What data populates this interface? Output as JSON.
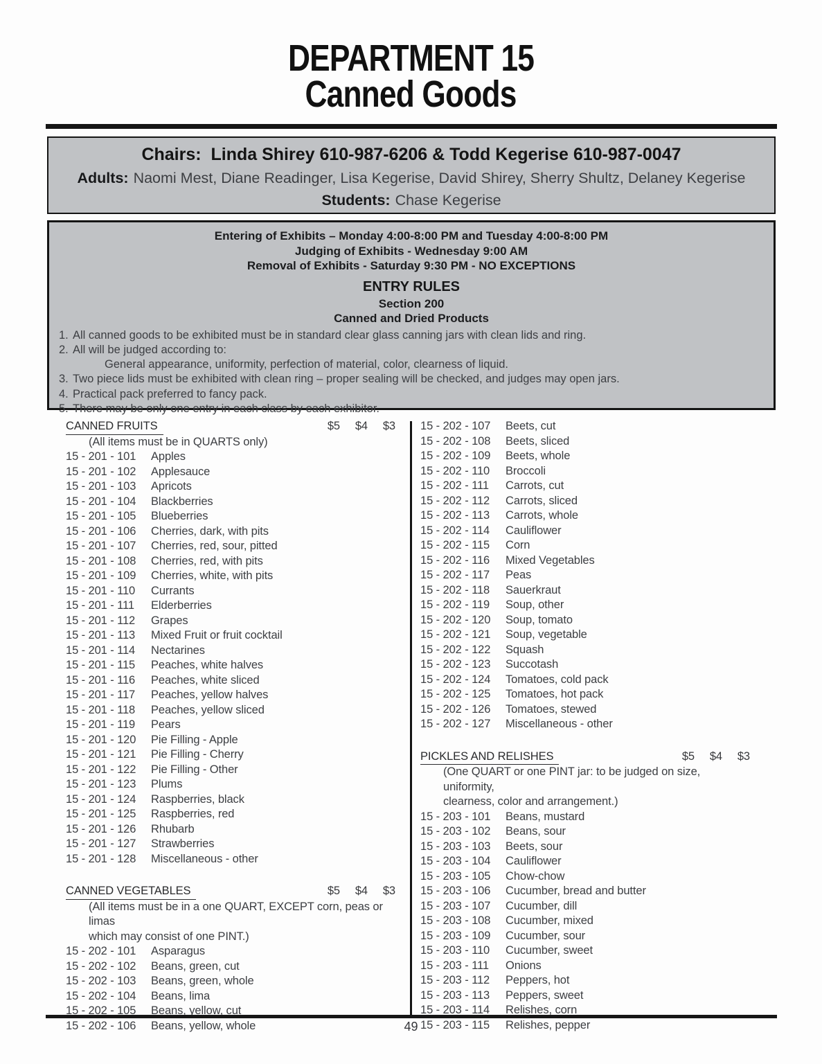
{
  "header": {
    "title_line1": "DEPARTMENT 15",
    "title_line2": "Canned Goods"
  },
  "chairs_box": {
    "chairs_line": "Chairs:  Linda Shirey 610-987-6206 & Todd Kegerise 610-987-0047",
    "adults_label": "Adults:",
    "adults_names": "Naomi Mest, Diane Readinger, Lisa Kegerise, David Shirey, Sherry Shultz, Delaney Kegerise",
    "students_label": "Students:",
    "students_names": "Chase Kegerise"
  },
  "rules_box": {
    "schedule_lines": [
      "Entering of Exhibits – Monday 4:00-8:00 PM and Tuesday 4:00-8:00 PM",
      "Judging of Exhibits - Wednesday 9:00 AM",
      "Removal of Exhibits - Saturday 9:30 PM - NO EXCEPTIONS"
    ],
    "entry_rules_title": "ENTRY RULES",
    "section_line": "Section 200",
    "category_line": "Canned and Dried Products",
    "rules": [
      {
        "num": "1.",
        "text": "All canned goods to be exhibited must be in standard clear glass canning jars with clean lids and ring.",
        "indent": false
      },
      {
        "num": "2.",
        "text": "All will be judged according to:",
        "indent": false
      },
      {
        "num": "",
        "text": "General appearance, uniformity, perfection of material, color, clearness of liquid.",
        "indent": true
      },
      {
        "num": "3.",
        "text": "Two piece lids must be exhibited with clean ring – proper sealing will be checked, and judges may open jars.",
        "indent": false
      },
      {
        "num": "4.",
        "text": "Practical pack preferred to fancy pack.",
        "indent": false
      },
      {
        "num": "5.",
        "text": "There may be only one entry in each class by each exhibitor.",
        "indent": false
      }
    ]
  },
  "list": {
    "columns": [
      {
        "blocks": [
          {
            "type": "section",
            "title": "CANNED FRUITS",
            "prices": [
              "$5",
              "$4",
              "$3"
            ]
          },
          {
            "type": "note",
            "text": "(All items must be in QUARTS only)"
          },
          {
            "type": "item",
            "code": "15 - 201 - 101",
            "desc": "Apples"
          },
          {
            "type": "item",
            "code": "15 - 201 - 102",
            "desc": "Applesauce"
          },
          {
            "type": "item",
            "code": "15 - 201 - 103",
            "desc": "Apricots"
          },
          {
            "type": "item",
            "code": "15 - 201 - 104",
            "desc": "Blackberries"
          },
          {
            "type": "item",
            "code": "15 - 201 - 105",
            "desc": "Blueberries"
          },
          {
            "type": "item",
            "code": "15 - 201 - 106",
            "desc": "Cherries, dark, with pits"
          },
          {
            "type": "item",
            "code": "15 - 201 - 107",
            "desc": "Cherries, red, sour, pitted"
          },
          {
            "type": "item",
            "code": "15 - 201 - 108",
            "desc": "Cherries, red, with pits"
          },
          {
            "type": "item",
            "code": "15 - 201 - 109",
            "desc": "Cherries, white, with pits"
          },
          {
            "type": "item",
            "code": "15 - 201 - 110",
            "desc": "Currants"
          },
          {
            "type": "item",
            "code": "15 - 201 - 111",
            "desc": "Elderberries"
          },
          {
            "type": "item",
            "code": "15 - 201 - 112",
            "desc": "Grapes"
          },
          {
            "type": "item",
            "code": "15 - 201 - 113",
            "desc": "Mixed Fruit or fruit cocktail"
          },
          {
            "type": "item",
            "code": "15 - 201 - 114",
            "desc": "Nectarines"
          },
          {
            "type": "item",
            "code": "15 - 201 - 115",
            "desc": "Peaches, white halves"
          },
          {
            "type": "item",
            "code": "15 - 201 - 116",
            "desc": "Peaches, white sliced"
          },
          {
            "type": "item",
            "code": "15 - 201 - 117",
            "desc": "Peaches, yellow halves"
          },
          {
            "type": "item",
            "code": "15 - 201 - 118",
            "desc": "Peaches, yellow sliced"
          },
          {
            "type": "item",
            "code": "15 - 201 - 119",
            "desc": "Pears"
          },
          {
            "type": "item",
            "code": "15 - 201 - 120",
            "desc": "Pie Filling - Apple"
          },
          {
            "type": "item",
            "code": "15 - 201 - 121",
            "desc": "Pie Filling - Cherry"
          },
          {
            "type": "item",
            "code": "15 - 201 - 122",
            "desc": "Pie Filling - Other"
          },
          {
            "type": "item",
            "code": "15 - 201 - 123",
            "desc": "Plums"
          },
          {
            "type": "item",
            "code": "15 - 201 - 124",
            "desc": "Raspberries, black"
          },
          {
            "type": "item",
            "code": "15 - 201 - 125",
            "desc": "Raspberries, red"
          },
          {
            "type": "item",
            "code": "15 - 201 - 126",
            "desc": "Rhubarb"
          },
          {
            "type": "item",
            "code": "15 - 201 - 127",
            "desc": "Strawberries"
          },
          {
            "type": "item",
            "code": "15 - 201 - 128",
            "desc": "Miscellaneous - other"
          },
          {
            "type": "spacer"
          },
          {
            "type": "section",
            "title": "CANNED VEGETABLES",
            "prices": [
              "$5",
              "$4",
              "$3"
            ]
          },
          {
            "type": "note",
            "text": "(All items must be in a one QUART, EXCEPT corn, peas or limas"
          },
          {
            "type": "note",
            "text": "which may consist of one PINT.)"
          },
          {
            "type": "item",
            "code": "15 - 202 - 101",
            "desc": "Asparagus"
          },
          {
            "type": "item",
            "code": "15 - 202 - 102",
            "desc": "Beans, green, cut"
          },
          {
            "type": "item",
            "code": "15 - 202 - 103",
            "desc": "Beans, green, whole"
          },
          {
            "type": "item",
            "code": "15 - 202 - 104",
            "desc": "Beans, lima"
          },
          {
            "type": "item",
            "code": "15 - 202 - 105",
            "desc": "Beans, yellow, cut"
          },
          {
            "type": "item",
            "code": "15 - 202 - 106",
            "desc": "Beans, yellow, whole"
          }
        ]
      },
      {
        "blocks": [
          {
            "type": "item",
            "code": "15 - 202 - 107",
            "desc": "Beets, cut"
          },
          {
            "type": "item",
            "code": "15 - 202 - 108",
            "desc": "Beets, sliced"
          },
          {
            "type": "item",
            "code": "15 - 202 - 109",
            "desc": "Beets, whole"
          },
          {
            "type": "item",
            "code": "15 - 202 - 110",
            "desc": "Broccoli"
          },
          {
            "type": "item",
            "code": "15 - 202 - 111",
            "desc": "Carrots, cut"
          },
          {
            "type": "item",
            "code": "15 - 202 - 112",
            "desc": "Carrots, sliced"
          },
          {
            "type": "item",
            "code": "15 - 202 - 113",
            "desc": "Carrots, whole"
          },
          {
            "type": "item",
            "code": "15 - 202 - 114",
            "desc": "Cauliflower"
          },
          {
            "type": "item",
            "code": "15 - 202 - 115",
            "desc": "Corn"
          },
          {
            "type": "item",
            "code": "15 - 202 - 116",
            "desc": "Mixed Vegetables"
          },
          {
            "type": "item",
            "code": "15 - 202 - 117",
            "desc": "Peas"
          },
          {
            "type": "item",
            "code": "15 - 202 - 118",
            "desc": "Sauerkraut"
          },
          {
            "type": "item",
            "code": "15 - 202 - 119",
            "desc": "Soup, other"
          },
          {
            "type": "item",
            "code": "15 - 202 - 120",
            "desc": "Soup, tomato"
          },
          {
            "type": "item",
            "code": "15 - 202 - 121",
            "desc": "Soup, vegetable"
          },
          {
            "type": "item",
            "code": "15 - 202 - 122",
            "desc": "Squash"
          },
          {
            "type": "item",
            "code": "15 - 202 - 123",
            "desc": "Succotash"
          },
          {
            "type": "item",
            "code": "15 - 202 - 124",
            "desc": "Tomatoes, cold pack"
          },
          {
            "type": "item",
            "code": "15 - 202 - 125",
            "desc": "Tomatoes, hot pack"
          },
          {
            "type": "item",
            "code": "15 - 202 - 126",
            "desc": "Tomatoes, stewed"
          },
          {
            "type": "item",
            "code": "15 - 202 - 127",
            "desc": "Miscellaneous - other"
          },
          {
            "type": "spacer"
          },
          {
            "type": "section",
            "title": "PICKLES AND RELISHES",
            "prices": [
              "$5",
              "$4",
              "$3"
            ]
          },
          {
            "type": "note",
            "text": "(One QUART or one PINT jar: to be judged on size, uniformity,"
          },
          {
            "type": "note",
            "text": "clearness, color and arrangement.)"
          },
          {
            "type": "item",
            "code": "15 - 203 - 101",
            "desc": "Beans, mustard"
          },
          {
            "type": "item",
            "code": "15 - 203 - 102",
            "desc": "Beans, sour"
          },
          {
            "type": "item",
            "code": "15 - 203 - 103",
            "desc": "Beets, sour"
          },
          {
            "type": "item",
            "code": "15 - 203 - 104",
            "desc": "Cauliflower"
          },
          {
            "type": "item",
            "code": "15 - 203 - 105",
            "desc": "Chow-chow"
          },
          {
            "type": "item",
            "code": "15 - 203 - 106",
            "desc": "Cucumber, bread and butter"
          },
          {
            "type": "item",
            "code": "15 - 203 - 107",
            "desc": "Cucumber, dill"
          },
          {
            "type": "item",
            "code": "15 - 203 - 108",
            "desc": "Cucumber, mixed"
          },
          {
            "type": "item",
            "code": "15 - 203 - 109",
            "desc": "Cucumber, sour"
          },
          {
            "type": "item",
            "code": "15 - 203 - 110",
            "desc": "Cucumber, sweet"
          },
          {
            "type": "item",
            "code": "15 - 203 - 111",
            "desc": "Onions"
          },
          {
            "type": "item",
            "code": "15 - 203 - 112",
            "desc": "Peppers, hot"
          },
          {
            "type": "item",
            "code": "15 - 203 - 113",
            "desc": "Peppers, sweet"
          },
          {
            "type": "item",
            "code": "15 - 203 - 114",
            "desc": "Relishes, corn"
          },
          {
            "type": "item",
            "code": "15 - 203 - 115",
            "desc": "Relishes, pepper"
          }
        ]
      }
    ]
  },
  "footer": {
    "page_number": "49"
  }
}
